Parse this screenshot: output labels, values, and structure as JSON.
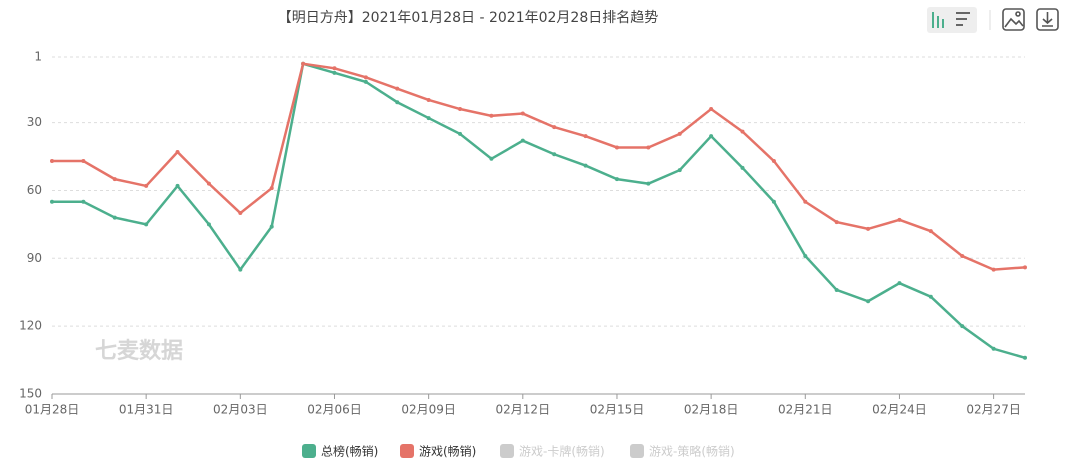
{
  "chart_data": {
    "type": "line",
    "title": "【明日方舟】2021年01月28日 - 2021年02月28日排名趋势",
    "watermark": "七麦数据",
    "categories": [
      "01月28日",
      null,
      null,
      "01月31日",
      null,
      null,
      "02月03日",
      null,
      null,
      "02月06日",
      null,
      null,
      "02月09日",
      null,
      null,
      "02月12日",
      null,
      null,
      "02月15日",
      null,
      null,
      "02月18日",
      null,
      null,
      "02月21日",
      null,
      null,
      "02月24日",
      null,
      null,
      "02月27日",
      null
    ],
    "series": [
      {
        "name": "总榜(畅销)",
        "color": "#4caf8d",
        "values": [
          65,
          65,
          72,
          75,
          58,
          75,
          95,
          76,
          4,
          8,
          12,
          21,
          28,
          35,
          46,
          38,
          44,
          49,
          55,
          57,
          51,
          36,
          50,
          65,
          89,
          104,
          109,
          101,
          107,
          120,
          130,
          134
        ]
      },
      {
        "name": "游戏(畅销)",
        "color": "#e57368",
        "values": [
          47,
          47,
          55,
          58,
          43,
          57,
          70,
          59,
          4,
          6,
          10,
          15,
          20,
          24,
          27,
          26,
          32,
          36,
          41,
          41,
          35,
          24,
          34,
          47,
          65,
          74,
          77,
          73,
          78,
          89,
          95,
          94
        ]
      }
    ],
    "inactive_legend": [
      {
        "name": "游戏-卡牌(畅销)",
        "color": "#cccccc"
      },
      {
        "name": "游戏-策略(畅销)",
        "color": "#cccccc"
      }
    ],
    "ylim": [
      1,
      150
    ],
    "yticks": [
      1,
      30,
      60,
      90,
      120,
      150
    ],
    "y_inverse": true,
    "grid": true
  }
}
